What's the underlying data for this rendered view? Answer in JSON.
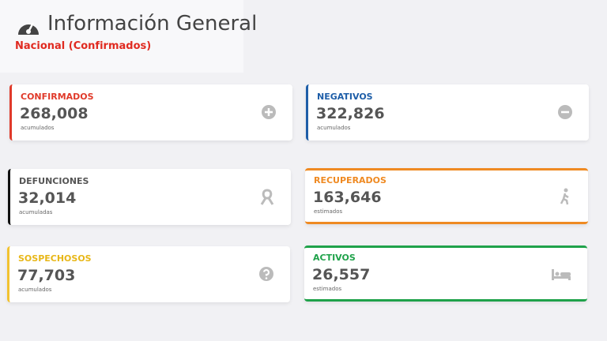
{
  "header": {
    "title": "Información General",
    "subtitle": "Nacional (Confirmados)"
  },
  "cards": [
    {
      "label": "CONFIRMADOS",
      "value": "268,008",
      "note": "acumulados"
    },
    {
      "label": "NEGATIVOS",
      "value": "322,826",
      "note": "acumulados"
    },
    {
      "label": "DEFUNCIONES",
      "value": "32,014",
      "note": "acumuladas"
    },
    {
      "label": "RECUPERADOS",
      "value": "163,646",
      "note": "estimados"
    },
    {
      "label": "SOSPECHOSOS",
      "value": "77,703",
      "note": "acumulados"
    },
    {
      "label": "ACTIVOS",
      "value": "26,557",
      "note": "estimados"
    }
  ]
}
